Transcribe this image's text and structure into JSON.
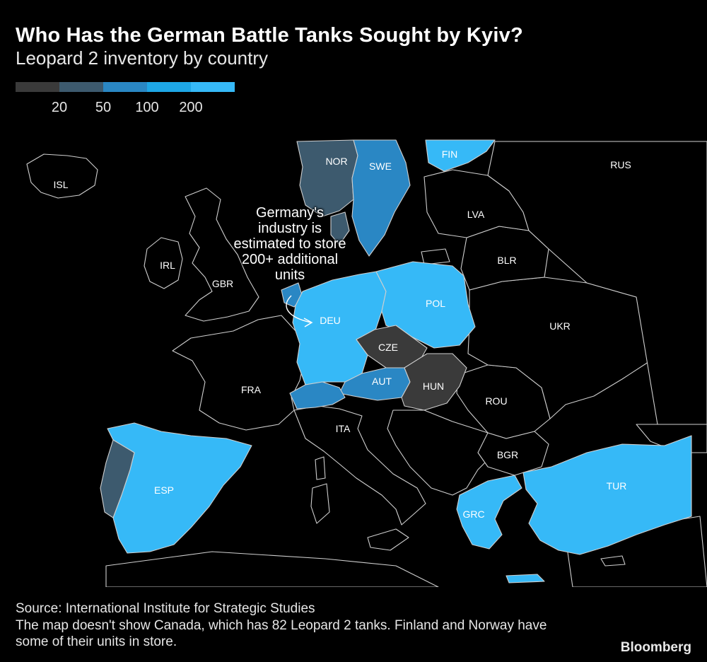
{
  "title": "Who Has the German Battle Tanks Sought by Kyiv?",
  "subtitle": "Leopard 2 inventory by country",
  "legend": {
    "colors": [
      "#3a3a3a",
      "#3d5a6e",
      "#2a87c4",
      "#1ea7e6",
      "#36b9f7"
    ],
    "ticks": [
      "20",
      "50",
      "100",
      "200"
    ]
  },
  "annotation": {
    "text_lines": [
      "Germany's",
      "industry is",
      "estimated to store",
      "200+ additional",
      "units"
    ]
  },
  "map": {
    "background_land": "#000000",
    "border_color": "#cfcfcf",
    "countries": {
      "NOR": {
        "label": "NOR",
        "color": "#3d5a6e"
      },
      "SWE": {
        "label": "SWE",
        "color": "#2a87c4"
      },
      "FIN": {
        "label": "FIN",
        "color": "#36b9f7"
      },
      "DEU": {
        "label": "DEU",
        "color": "#36b9f7"
      },
      "POL": {
        "label": "POL",
        "color": "#36b9f7"
      },
      "CZE": {
        "label": "CZE",
        "color": "#3a3a3a"
      },
      "AUT": {
        "label": "AUT",
        "color": "#2a87c4"
      },
      "HUN": {
        "label": "HUN",
        "color": "#3a3a3a"
      },
      "CHE": {
        "label": "",
        "color": "#2a87c4"
      },
      "DNK": {
        "label": "",
        "color": "#3d5a6e"
      },
      "NLD": {
        "label": "",
        "color": "#2a87c4"
      },
      "ESP": {
        "label": "ESP",
        "color": "#36b9f7"
      },
      "PRT": {
        "label": "",
        "color": "#3d5a6e"
      },
      "GRC": {
        "label": "GRC",
        "color": "#36b9f7"
      },
      "TUR": {
        "label": "TUR",
        "color": "#36b9f7"
      }
    },
    "other_labels": [
      "ISL",
      "RUS",
      "LVA",
      "BLR",
      "IRL",
      "GBR",
      "UKR",
      "FRA",
      "ROU",
      "ITA",
      "BGR"
    ]
  },
  "source": "Source: International Institute for Strategic Studies",
  "note": "The map doesn't show Canada, which has 82 Leopard 2 tanks. Finland and Norway have some of their units in store.",
  "brand": "Bloomberg"
}
